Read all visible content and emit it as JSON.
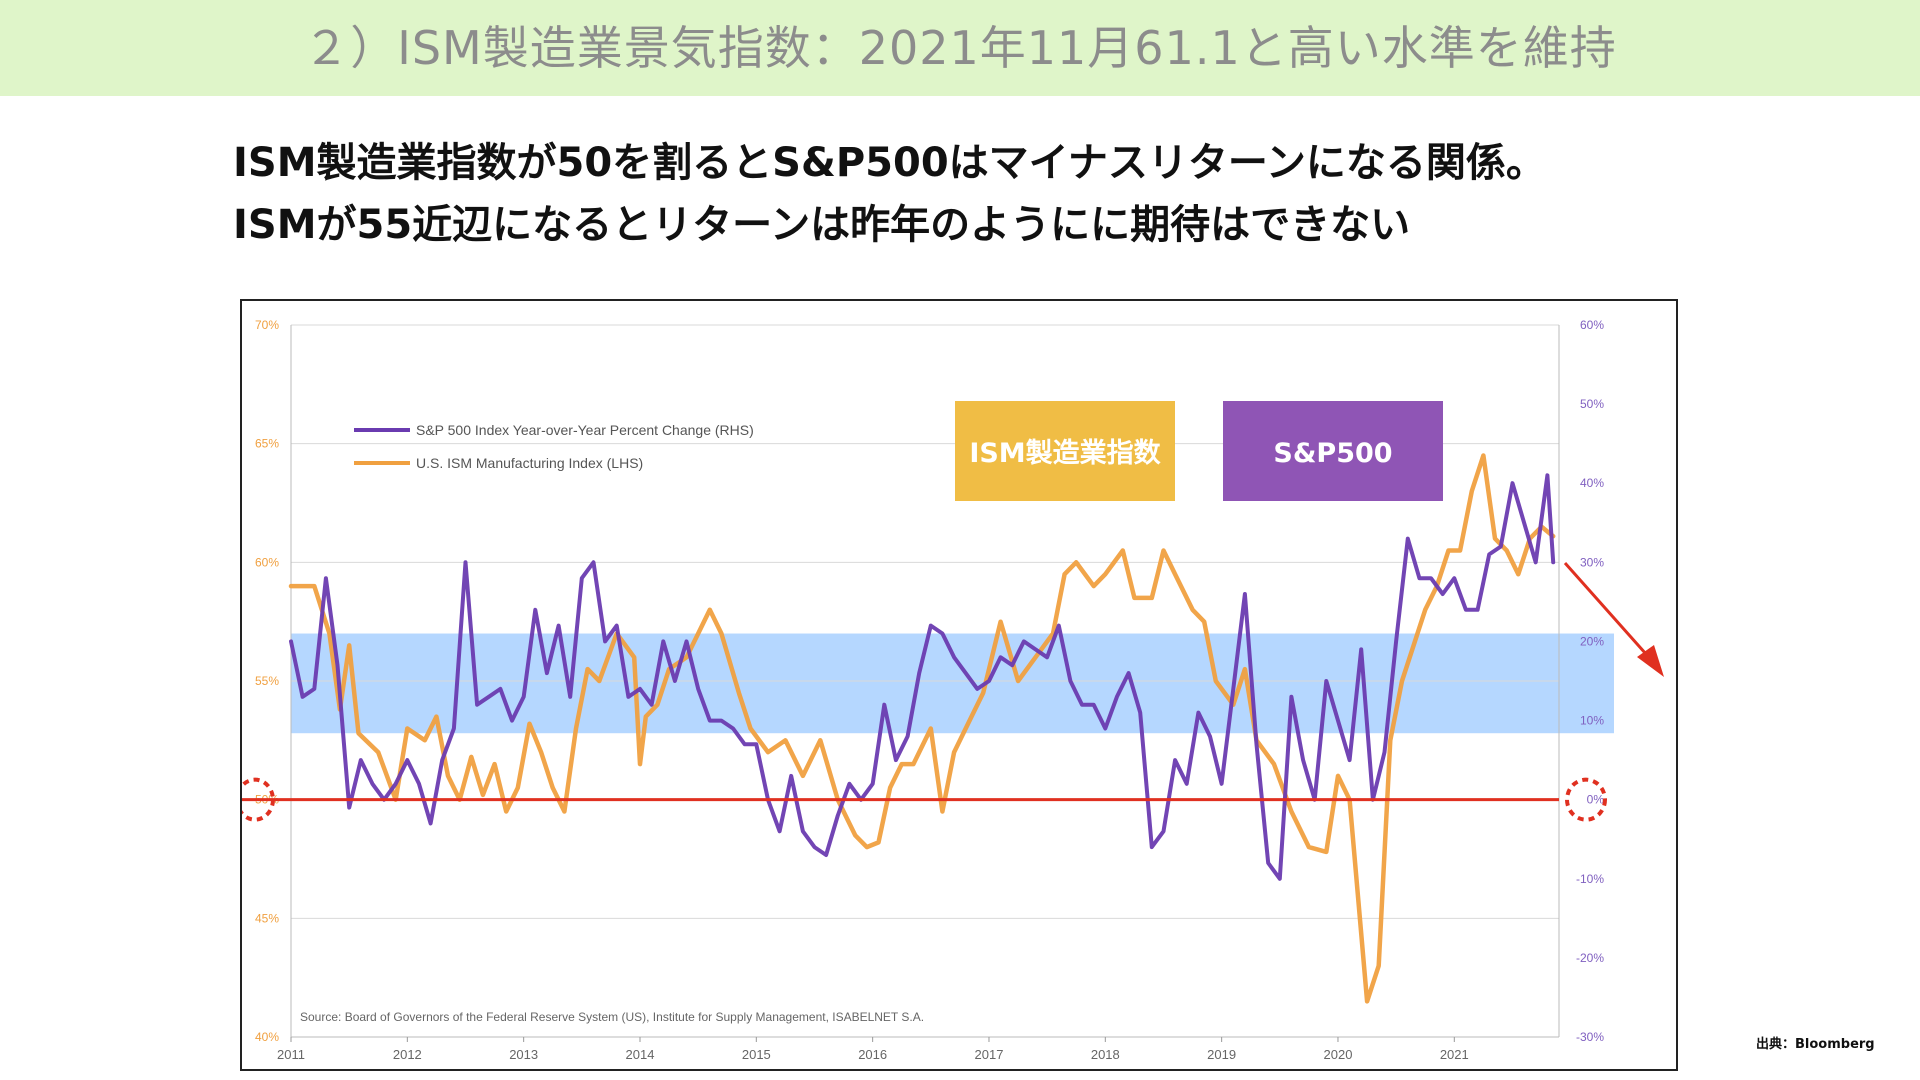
{
  "header": {
    "title": "２）ISM製造業景気指数：2021年11月61.1と高い水準を維持"
  },
  "headline": {
    "line1": "ISM製造業指数が50を割るとS&P500はマイナスリターンになる関係。",
    "line2": "ISMが55近辺になるとリターンは昨年のようにに期待はできない"
  },
  "labels": {
    "ism_box": "ISM製造業指数",
    "sp_box": "S&P500"
  },
  "colors": {
    "ism": "#f0a040",
    "sp500": "#6a3bb0",
    "band": "#a8d0ff",
    "ref_line": "#e03020",
    "ism_box": "#f0bd45",
    "sp_box": "#8f55b5",
    "axis_left_text": "#f0a040",
    "axis_right_text": "#8060c0"
  },
  "source": "Source: Board of Governors of the Federal Reserve System (US), Institute for Supply Management, ISABELNET S.A.",
  "credit": "出典：Bloomberg",
  "chart_data": {
    "type": "line",
    "x_range": [
      2011.0,
      2021.9
    ],
    "x_ticks": [
      "2011",
      "2012",
      "2013",
      "2014",
      "2015",
      "2016",
      "2017",
      "2018",
      "2019",
      "2020",
      "2021"
    ],
    "left_axis": {
      "label": "",
      "ticks": [
        "70%",
        "65%",
        "60%",
        "55%",
        "50%",
        "45%",
        "40%"
      ],
      "range": [
        40,
        70
      ]
    },
    "right_axis": {
      "label": "",
      "ticks": [
        "60%",
        "50%",
        "40%",
        "30%",
        "20%",
        "10%",
        "0%",
        "-10%",
        "-20%",
        "-30%"
      ],
      "range": [
        -30,
        60
      ]
    },
    "highlight_band_left": [
      52.8,
      57.0
    ],
    "reference_line_left": 50,
    "legend": [
      {
        "name": "S&P 500 Index Year-over-Year Percent Change (RHS)"
      },
      {
        "name": "U.S. ISM Manufacturing Index (LHS)"
      }
    ],
    "series": [
      {
        "name": "U.S. ISM Manufacturing Index (LHS)",
        "axis": "left",
        "x": [
          2011.0,
          2011.2,
          2011.33,
          2011.42,
          2011.5,
          2011.58,
          2011.75,
          2011.9,
          2012.0,
          2012.15,
          2012.25,
          2012.35,
          2012.45,
          2012.55,
          2012.65,
          2012.75,
          2012.85,
          2012.95,
          2013.05,
          2013.15,
          2013.25,
          2013.35,
          2013.45,
          2013.55,
          2013.65,
          2013.8,
          2013.95,
          2014.0,
          2014.05,
          2014.15,
          2014.25,
          2014.4,
          2014.5,
          2014.6,
          2014.7,
          2014.85,
          2014.95,
          2015.1,
          2015.25,
          2015.4,
          2015.55,
          2015.7,
          2015.85,
          2015.95,
          2016.05,
          2016.15,
          2016.25,
          2016.35,
          2016.5,
          2016.6,
          2016.7,
          2016.85,
          2016.95,
          2017.1,
          2017.25,
          2017.4,
          2017.55,
          2017.65,
          2017.75,
          2017.9,
          2018.0,
          2018.15,
          2018.25,
          2018.4,
          2018.5,
          2018.6,
          2018.75,
          2018.85,
          2018.95,
          2019.1,
          2019.2,
          2019.3,
          2019.45,
          2019.6,
          2019.75,
          2019.9,
          2020.0,
          2020.1,
          2020.25,
          2020.35,
          2020.45,
          2020.55,
          2020.65,
          2020.75,
          2020.85,
          2020.95,
          2021.05,
          2021.15,
          2021.25,
          2021.35,
          2021.45,
          2021.55,
          2021.65,
          2021.75,
          2021.85
        ],
        "y": [
          59.0,
          59.0,
          57.0,
          53.8,
          56.5,
          52.8,
          52.0,
          50.0,
          53.0,
          52.5,
          53.5,
          51.0,
          50.0,
          51.8,
          50.2,
          51.5,
          49.5,
          50.5,
          53.2,
          52.0,
          50.5,
          49.5,
          53.0,
          55.5,
          55.0,
          57.0,
          56.0,
          51.5,
          53.5,
          54.0,
          55.5,
          56.0,
          57.0,
          58.0,
          57.0,
          54.5,
          53.0,
          52.0,
          52.5,
          51.0,
          52.5,
          50.0,
          48.5,
          48.0,
          48.2,
          50.5,
          51.5,
          51.5,
          53.0,
          49.5,
          52.0,
          53.5,
          54.5,
          57.5,
          55.0,
          56.0,
          57.0,
          59.5,
          60.0,
          59.0,
          59.5,
          60.5,
          58.5,
          58.5,
          60.5,
          59.5,
          58.0,
          57.5,
          55.0,
          54.0,
          55.5,
          52.5,
          51.5,
          49.5,
          48.0,
          47.8,
          51.0,
          50.0,
          41.5,
          43.0,
          52.5,
          55.0,
          56.5,
          58.0,
          59.0,
          60.5,
          60.5,
          63.0,
          64.5,
          61.0,
          60.5,
          59.5,
          61.0,
          61.5,
          61.1
        ]
      },
      {
        "name": "S&P 500 Index Year-over-Year Percent Change (RHS)",
        "axis": "right",
        "x": [
          2011.0,
          2011.1,
          2011.2,
          2011.3,
          2011.4,
          2011.5,
          2011.6,
          2011.7,
          2011.8,
          2011.9,
          2012.0,
          2012.1,
          2012.2,
          2012.3,
          2012.4,
          2012.5,
          2012.6,
          2012.7,
          2012.8,
          2012.9,
          2013.0,
          2013.1,
          2013.2,
          2013.3,
          2013.4,
          2013.5,
          2013.6,
          2013.7,
          2013.8,
          2013.9,
          2014.0,
          2014.1,
          2014.2,
          2014.3,
          2014.4,
          2014.5,
          2014.6,
          2014.7,
          2014.8,
          2014.9,
          2015.0,
          2015.1,
          2015.2,
          2015.3,
          2015.4,
          2015.5,
          2015.6,
          2015.7,
          2015.8,
          2015.9,
          2016.0,
          2016.1,
          2016.2,
          2016.3,
          2016.4,
          2016.5,
          2016.6,
          2016.7,
          2016.8,
          2016.9,
          2017.0,
          2017.1,
          2017.2,
          2017.3,
          2017.4,
          2017.5,
          2017.6,
          2017.7,
          2017.8,
          2017.9,
          2018.0,
          2018.1,
          2018.2,
          2018.3,
          2018.4,
          2018.5,
          2018.6,
          2018.7,
          2018.8,
          2018.9,
          2019.0,
          2019.1,
          2019.2,
          2019.3,
          2019.4,
          2019.5,
          2019.6,
          2019.7,
          2019.8,
          2019.9,
          2020.0,
          2020.1,
          2020.2,
          2020.3,
          2020.4,
          2020.5,
          2020.6,
          2020.7,
          2020.8,
          2020.9,
          2021.0,
          2021.1,
          2021.2,
          2021.3,
          2021.4,
          2021.5,
          2021.6,
          2021.7,
          2021.8,
          2021.85
        ],
        "y": [
          20,
          13,
          14,
          28,
          17,
          -1,
          5,
          2,
          0,
          2,
          5,
          2,
          -3,
          5,
          9,
          30,
          12,
          13,
          14,
          10,
          13,
          24,
          16,
          22,
          13,
          28,
          30,
          20,
          22,
          13,
          14,
          12,
          20,
          15,
          20,
          14,
          10,
          10,
          9,
          7,
          7,
          0,
          -4,
          3,
          -4,
          -6,
          -7,
          -2,
          2,
          0,
          2,
          12,
          5,
          8,
          16,
          22,
          21,
          18,
          16,
          14,
          15,
          18,
          17,
          20,
          19,
          18,
          22,
          15,
          12,
          12,
          9,
          13,
          16,
          11,
          -6,
          -4,
          5,
          2,
          11,
          8,
          2,
          14,
          26,
          7,
          -8,
          -10,
          13,
          5,
          0,
          15,
          10,
          5,
          19,
          0,
          6,
          20,
          33,
          28,
          28,
          26,
          28,
          24,
          24,
          31,
          32,
          40,
          35,
          30,
          41,
          30
        ]
      }
    ]
  }
}
